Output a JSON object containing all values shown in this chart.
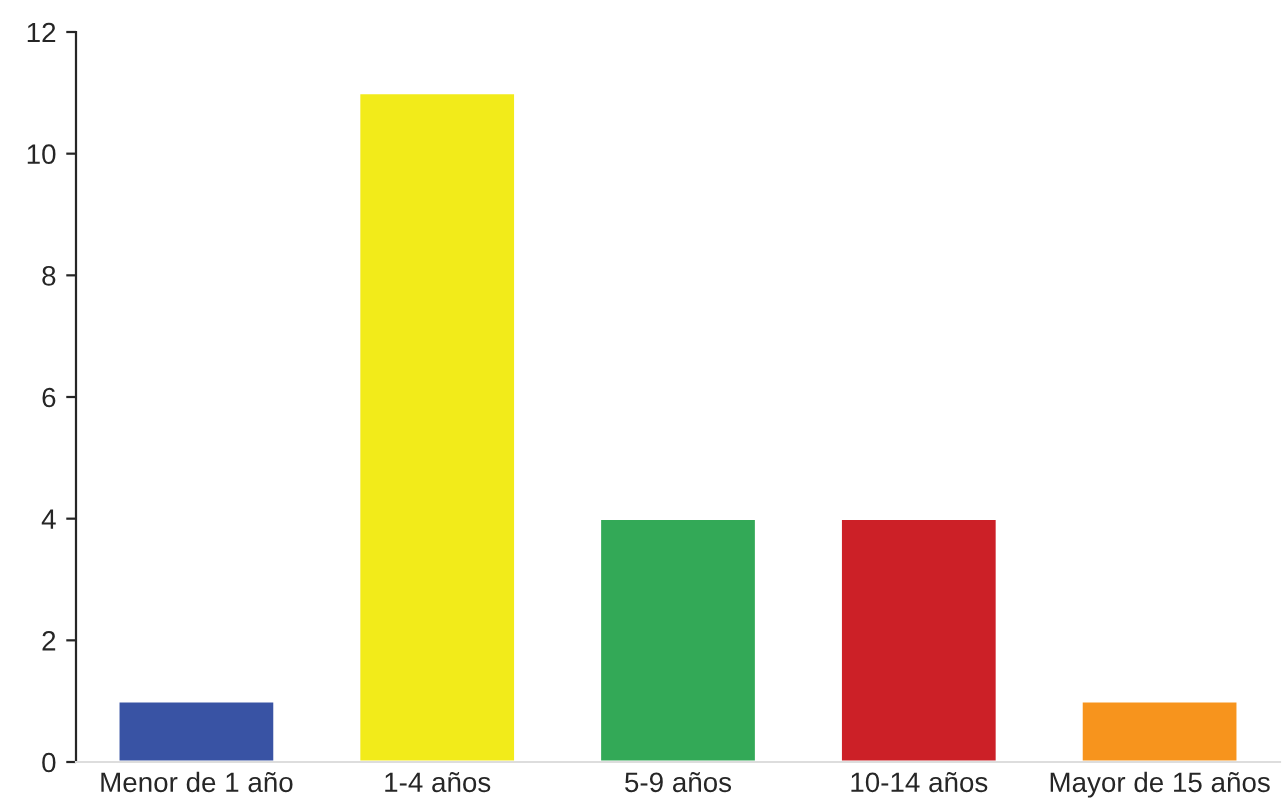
{
  "chart_data": {
    "type": "bar",
    "categories": [
      "Menor de 1 año",
      "1-4 años",
      "5-9 años",
      "10-14 años",
      "Mayor de 15 años"
    ],
    "values": [
      1,
      11,
      4,
      4,
      1
    ],
    "colors": [
      "#3953a4",
      "#f2eb1a",
      "#33a957",
      "#cc2027",
      "#f7941d"
    ],
    "ylim": [
      0,
      12
    ],
    "yticks": [
      0,
      2,
      4,
      6,
      8,
      10,
      12
    ],
    "grid": false,
    "legend": false
  }
}
